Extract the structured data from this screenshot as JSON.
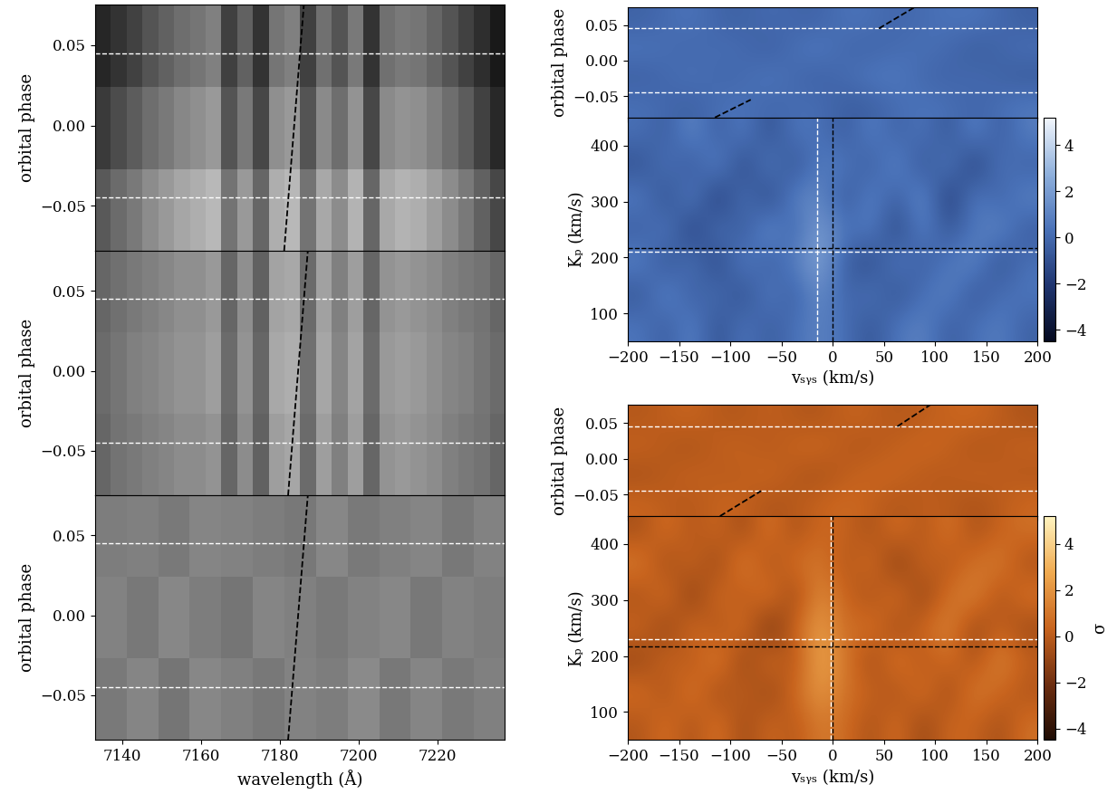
{
  "chart_data": [
    {
      "type": "heatmap",
      "color": "gray",
      "tick_labels": "y",
      "xlim": [
        7133,
        7237
      ],
      "ylim": [
        -0.078,
        0.075
      ],
      "xticks": [
        7140,
        7160,
        7180,
        7200,
        7220
      ],
      "yticks": [
        {
          "value": -0.05,
          "label": "−0.05"
        },
        {
          "value": 0.0,
          "label": "0.00"
        },
        {
          "value": 0.05,
          "label": "0.05"
        }
      ],
      "ylabel": "orbital phase",
      "clim": [
        0,
        1
      ],
      "cells": [
        [
          0.35,
          0.42,
          0.48,
          0.55,
          0.6,
          0.65,
          0.68,
          0.72,
          0.45,
          0.6,
          0.4,
          0.68,
          0.72,
          0.45,
          0.66,
          0.55,
          0.7,
          0.4,
          0.66,
          0.7,
          0.68,
          0.62,
          0.55,
          0.48,
          0.38,
          0.28
        ],
        [
          0.23,
          0.3,
          0.36,
          0.43,
          0.48,
          0.53,
          0.56,
          0.6,
          0.33,
          0.48,
          0.28,
          0.56,
          0.6,
          0.33,
          0.54,
          0.43,
          0.58,
          0.28,
          0.54,
          0.58,
          0.56,
          0.5,
          0.43,
          0.36,
          0.26,
          0.16
        ],
        [
          0.15,
          0.2,
          0.26,
          0.33,
          0.38,
          0.43,
          0.46,
          0.5,
          0.25,
          0.38,
          0.2,
          0.46,
          0.5,
          0.25,
          0.44,
          0.33,
          0.48,
          0.2,
          0.44,
          0.48,
          0.46,
          0.4,
          0.33,
          0.26,
          0.18,
          0.1
        ]
      ],
      "hlines": [
        {
          "y": -0.045,
          "color": "white"
        },
        {
          "y": 0.045,
          "color": "white"
        }
      ],
      "vlines": [],
      "tracks": [
        {
          "x": [
            7181,
            7186
          ],
          "y": [
            -0.078,
            0.075
          ],
          "color": "black"
        }
      ]
    },
    {
      "type": "heatmap",
      "color": "gray",
      "tick_labels": "y",
      "xlim": [
        7133,
        7237
      ],
      "ylim": [
        -0.078,
        0.075
      ],
      "xticks": [
        7140,
        7160,
        7180,
        7200,
        7220
      ],
      "yticks": [
        {
          "value": -0.05,
          "label": "−0.05"
        },
        {
          "value": 0.0,
          "label": "0.00"
        },
        {
          "value": 0.05,
          "label": "0.05"
        }
      ],
      "ylabel": "orbital phase",
      "clim": [
        0,
        1
      ],
      "cells": [
        [
          0.4,
          0.45,
          0.48,
          0.5,
          0.52,
          0.55,
          0.55,
          0.58,
          0.4,
          0.55,
          0.38,
          0.62,
          0.65,
          0.42,
          0.62,
          0.5,
          0.62,
          0.4,
          0.58,
          0.6,
          0.58,
          0.55,
          0.5,
          0.48,
          0.45,
          0.4
        ],
        [
          0.42,
          0.46,
          0.5,
          0.52,
          0.55,
          0.58,
          0.58,
          0.62,
          0.42,
          0.58,
          0.4,
          0.66,
          0.68,
          0.44,
          0.65,
          0.52,
          0.64,
          0.42,
          0.6,
          0.62,
          0.6,
          0.56,
          0.52,
          0.5,
          0.46,
          0.42
        ],
        [
          0.4,
          0.44,
          0.48,
          0.5,
          0.53,
          0.56,
          0.56,
          0.6,
          0.4,
          0.56,
          0.38,
          0.64,
          0.66,
          0.42,
          0.63,
          0.5,
          0.62,
          0.4,
          0.58,
          0.6,
          0.58,
          0.55,
          0.5,
          0.48,
          0.45,
          0.4
        ]
      ],
      "hlines": [
        {
          "y": -0.045,
          "color": "white"
        },
        {
          "y": 0.045,
          "color": "white"
        }
      ],
      "vlines": [],
      "tracks": [
        {
          "x": [
            7182,
            7187
          ],
          "y": [
            -0.078,
            0.075
          ],
          "color": "black"
        }
      ]
    },
    {
      "type": "heatmap",
      "color": "gray",
      "xlim": [
        7133,
        7237
      ],
      "ylim": [
        -0.078,
        0.075
      ],
      "xticks": [
        7140,
        7160,
        7180,
        7200,
        7220
      ],
      "yticks": [
        {
          "value": -0.05,
          "label": "−0.05"
        },
        {
          "value": 0.0,
          "label": "0.00"
        },
        {
          "value": 0.05,
          "label": "0.05"
        }
      ],
      "ylabel": "orbital phase",
      "xlabel": "wavelength (Å)",
      "clim": [
        0,
        1
      ],
      "cells": [
        [
          0.48,
          0.52,
          0.46,
          0.53,
          0.5,
          0.47,
          0.51,
          0.49,
          0.54,
          0.47,
          0.52,
          0.48,
          0.5
        ],
        [
          0.51,
          0.47,
          0.53,
          0.49,
          0.46,
          0.52,
          0.5,
          0.48,
          0.51,
          0.53,
          0.47,
          0.51,
          0.49
        ],
        [
          0.49,
          0.5,
          0.48,
          0.52,
          0.51,
          0.49,
          0.47,
          0.53,
          0.48,
          0.5,
          0.52,
          0.47,
          0.51
        ]
      ],
      "hlines": [
        {
          "y": -0.045,
          "color": "white"
        },
        {
          "y": 0.045,
          "color": "white"
        }
      ],
      "vlines": [],
      "tracks": [
        {
          "x": [
            7182,
            7187
          ],
          "y": [
            -0.078,
            0.075
          ],
          "color": "black"
        }
      ]
    },
    {
      "type": "heatmap",
      "color": "blue",
      "tick_labels": "y",
      "xlim": [
        -200,
        200
      ],
      "ylim": [
        -0.08,
        0.075
      ],
      "xticks": [
        -200,
        -150,
        -100,
        -50,
        0,
        50,
        100,
        150,
        200
      ],
      "yticks": [
        {
          "value": -0.05,
          "label": "−0.05"
        },
        {
          "value": 0.0,
          "label": "0.00"
        },
        {
          "value": 0.05,
          "label": "0.05"
        }
      ],
      "ylabel": "orbital phase",
      "clim": [
        -4.5,
        5.2
      ],
      "cells": [
        [
          0.3,
          -0.5,
          0.6,
          -0.2,
          0.4,
          -0.7,
          0.2,
          0.5,
          -0.3,
          0.6
        ],
        [
          -0.4,
          0.5,
          -0.3,
          0.7,
          -0.5,
          0.3,
          0.8,
          -0.4,
          0.2,
          -0.6
        ],
        [
          0.5,
          -0.2,
          0.4,
          -0.6,
          0.9,
          -0.3,
          0.1,
          0.4,
          -0.7,
          0.3
        ],
        [
          -0.3,
          0.6,
          -0.5,
          0.2,
          -0.4,
          0.6,
          -0.2,
          0.3,
          0.5,
          -0.4
        ]
      ],
      "hlines": [
        {
          "y": -0.045,
          "color": "white"
        },
        {
          "y": 0.045,
          "color": "white"
        }
      ],
      "vlines": [],
      "tracks": [
        {
          "x": [
            -115,
            -80
          ],
          "y": [
            -0.08,
            -0.055
          ],
          "color": "black"
        },
        {
          "x": [
            45,
            80
          ],
          "y": [
            0.045,
            0.075
          ],
          "color": "black"
        }
      ]
    },
    {
      "type": "heatmap",
      "color": "blue",
      "xlim": [
        -200,
        200
      ],
      "ylim": [
        50,
        450
      ],
      "xticks": [
        {
          "value": -200,
          "label": "−200"
        },
        {
          "value": -150,
          "label": "−150"
        },
        {
          "value": -100,
          "label": "−100"
        },
        {
          "value": -50,
          "label": "−50"
        },
        0,
        50,
        100,
        150,
        200
      ],
      "yticks": [
        100,
        200,
        300,
        400
      ],
      "ylabel": "Kₚ (km/s)",
      "xlabel": "vₛᵧₛ (km/s)",
      "clim": [
        -4.5,
        5.2
      ],
      "cells": [
        [
          0.5,
          -0.5,
          1.0,
          -1.0,
          0.5,
          -0.5,
          0.3,
          1.0,
          0.2,
          -0.8,
          0.5,
          1.0,
          -0.5,
          0.3,
          0.8,
          -0.3
        ],
        [
          -0.8,
          1.2,
          -0.5,
          0.3,
          -1.2,
          0.8,
          -0.5,
          1.5,
          -0.3,
          0.5,
          -1.0,
          0.3,
          1.0,
          -0.8,
          0.2,
          0.5
        ],
        [
          1.0,
          -1.0,
          0.5,
          -1.5,
          1.0,
          -0.5,
          0.8,
          2.5,
          -0.5,
          -1.2,
          0.8,
          -0.5,
          0.5,
          1.2,
          -1.0,
          0.3
        ],
        [
          -0.5,
          0.8,
          -1.8,
          0.5,
          -0.8,
          1.5,
          -0.3,
          2.2,
          0.3,
          0.8,
          -1.5,
          1.0,
          -0.8,
          0.5,
          1.2,
          -0.5
        ],
        [
          0.8,
          -1.2,
          1.0,
          -2.0,
          0.5,
          -1.5,
          1.0,
          1.2,
          -0.8,
          1.0,
          -0.5,
          1.5,
          -2.0,
          0.8,
          -0.3,
          1.0
        ],
        [
          -1.0,
          0.5,
          -0.8,
          1.2,
          -1.5,
          0.8,
          -1.0,
          0.8,
          0.5,
          -0.5,
          1.2,
          -1.0,
          0.8,
          -1.8,
          0.5,
          -0.3
        ],
        [
          0.3,
          -0.5,
          1.2,
          -0.5,
          0.8,
          -1.0,
          0.5,
          0.3,
          -0.5,
          0.8,
          -0.3,
          0.5,
          -0.8,
          1.0,
          -0.5,
          0.8
        ]
      ],
      "hlines": [
        {
          "y": 217,
          "color": "black"
        },
        {
          "y": 210,
          "color": "white"
        }
      ],
      "vlines": [
        {
          "x": 0,
          "color": "black"
        },
        {
          "x": -15,
          "color": "white"
        }
      ],
      "tracks": [],
      "colorbar": {
        "range": [
          -4.5,
          5.2
        ],
        "ticks": [
          {
            "value": -4,
            "label": "−4"
          },
          {
            "value": -2,
            "label": "−2"
          },
          0,
          2,
          4
        ]
      }
    },
    {
      "type": "heatmap",
      "color": "orange",
      "tick_labels": "y",
      "xlim": [
        -200,
        200
      ],
      "ylim": [
        -0.08,
        0.075
      ],
      "xticks": [
        -200,
        -150,
        -100,
        -50,
        0,
        50,
        100,
        150,
        200
      ],
      "yticks": [
        {
          "value": -0.05,
          "label": "−0.05"
        },
        {
          "value": 0.0,
          "label": "0.00"
        },
        {
          "value": 0.05,
          "label": "0.05"
        }
      ],
      "ylabel": "orbital phase",
      "clim": [
        -4.5,
        5.2
      ],
      "cells": [
        [
          0.4,
          -0.3,
          0.6,
          -0.5,
          0.2,
          0.7,
          -0.4,
          0.3,
          -0.6,
          0.5
        ],
        [
          -0.5,
          0.4,
          -0.2,
          0.6,
          -0.7,
          0.3,
          0.5,
          -0.3,
          0.4,
          -0.2
        ],
        [
          0.3,
          -0.6,
          0.5,
          -0.3,
          0.8,
          -0.4,
          0.2,
          0.6,
          -0.5,
          0.3
        ],
        [
          -0.2,
          0.5,
          -0.4,
          0.3,
          -0.5,
          0.5,
          -0.3,
          0.2,
          0.6,
          -0.4
        ]
      ],
      "hlines": [
        {
          "y": -0.045,
          "color": "white"
        },
        {
          "y": 0.045,
          "color": "white"
        }
      ],
      "vlines": [],
      "tracks": [
        {
          "x": [
            -110,
            -70
          ],
          "y": [
            -0.08,
            -0.045
          ],
          "color": "black"
        },
        {
          "x": [
            63,
            95
          ],
          "y": [
            0.045,
            0.075
          ],
          "color": "black"
        }
      ]
    },
    {
      "type": "heatmap",
      "color": "orange",
      "xlim": [
        -200,
        200
      ],
      "ylim": [
        50,
        450
      ],
      "xticks": [
        {
          "value": -200,
          "label": "−200"
        },
        {
          "value": -150,
          "label": "−150"
        },
        {
          "value": -100,
          "label": "−100"
        },
        {
          "value": -50,
          "label": "−50"
        },
        0,
        50,
        100,
        150,
        200
      ],
      "yticks": [
        100,
        200,
        300,
        400
      ],
      "ylabel": "Kₚ (km/s)",
      "xlabel": "vₛᵧₛ (km/s)",
      "clim": [
        -4.5,
        5.2
      ],
      "cells": [
        [
          -0.3,
          0.8,
          -0.5,
          1.0,
          -0.8,
          0.5,
          -0.2,
          1.2,
          0.6,
          -0.5,
          0.8,
          -1.0,
          0.5,
          0.3,
          -0.6,
          0.8
        ],
        [
          0.8,
          -0.5,
          1.2,
          -0.8,
          0.3,
          -1.0,
          0.5,
          2.2,
          0.8,
          0.3,
          -0.5,
          1.0,
          -0.8,
          1.2,
          0.5,
          -0.3
        ],
        [
          -1.0,
          0.5,
          -0.3,
          1.5,
          -1.2,
          0.8,
          -0.5,
          2.8,
          1.0,
          -0.8,
          1.2,
          -0.3,
          0.8,
          -0.5,
          1.5,
          0.2
        ],
        [
          0.5,
          -1.2,
          0.8,
          -0.5,
          1.0,
          -2.0,
          0.3,
          2.5,
          0.5,
          1.0,
          -0.8,
          0.5,
          1.5,
          -1.0,
          0.3,
          -0.8
        ],
        [
          -0.5,
          1.0,
          -1.5,
          0.8,
          -0.3,
          1.2,
          -1.0,
          1.8,
          0.3,
          -0.5,
          1.0,
          -1.2,
          0.8,
          1.5,
          -0.5,
          1.0
        ],
        [
          1.2,
          -0.8,
          0.5,
          -1.0,
          1.5,
          -0.5,
          0.8,
          1.0,
          -0.3,
          0.8,
          -1.5,
          0.5,
          -0.3,
          0.8,
          1.2,
          -0.5
        ],
        [
          -0.5,
          0.8,
          -0.3,
          0.5,
          -0.8,
          1.0,
          -0.5,
          0.5,
          0.3,
          -0.5,
          0.8,
          -0.3,
          1.0,
          -0.5,
          0.3,
          0.8
        ]
      ],
      "hlines": [
        {
          "y": 217,
          "color": "black"
        },
        {
          "y": 230,
          "color": "white"
        }
      ],
      "vlines": [
        {
          "x": 0,
          "color": "black"
        },
        {
          "x": -2,
          "color": "white"
        }
      ],
      "tracks": [],
      "colorbar": {
        "range": [
          -4.5,
          5.2
        ],
        "ticks": [
          {
            "value": -4,
            "label": "−4"
          },
          {
            "value": -2,
            "label": "−2"
          },
          0,
          2,
          4
        ],
        "label": "σ"
      }
    }
  ]
}
